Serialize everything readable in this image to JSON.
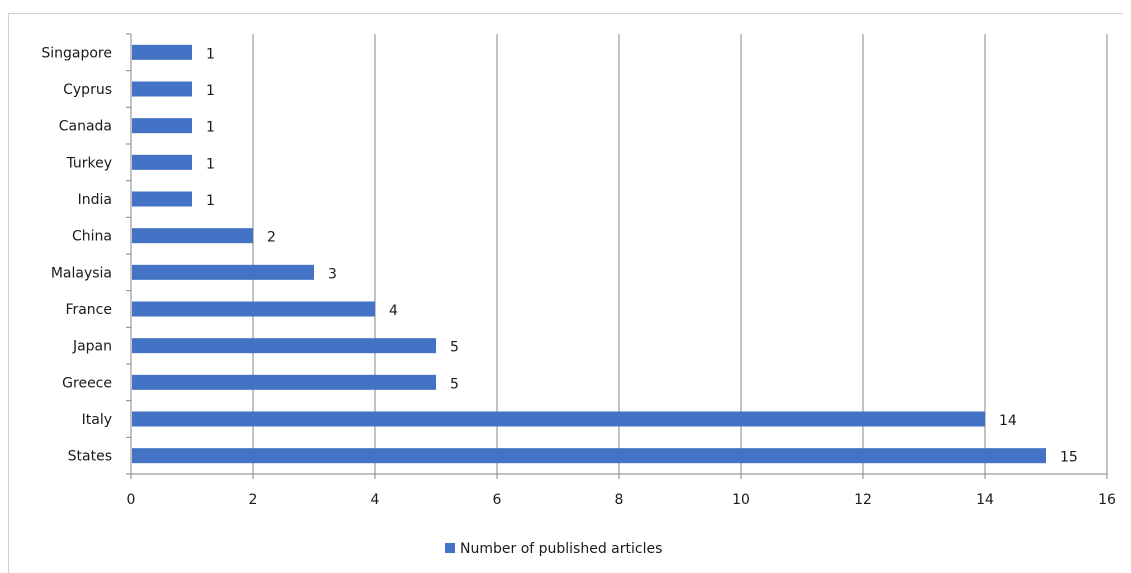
{
  "chart_data": {
    "type": "bar",
    "orientation": "horizontal",
    "categories": [
      "States",
      "Italy",
      "Greece",
      "Japan",
      "France",
      "Malaysia",
      "China",
      "India",
      "Turkey",
      "Canada",
      "Cyprus",
      "Singapore"
    ],
    "series": [
      {
        "name": "Number of published articles",
        "values": [
          15,
          14,
          5,
          5,
          4,
          3,
          2,
          1,
          1,
          1,
          1,
          1
        ],
        "color": "#4472c4"
      }
    ],
    "data_labels": true,
    "xlim": [
      0,
      16
    ],
    "x_ticks": [
      0,
      2,
      4,
      6,
      8,
      10,
      12,
      14,
      16
    ],
    "grid": "vertical",
    "legend": "bottom",
    "title": "",
    "xlabel": "",
    "ylabel": ""
  }
}
